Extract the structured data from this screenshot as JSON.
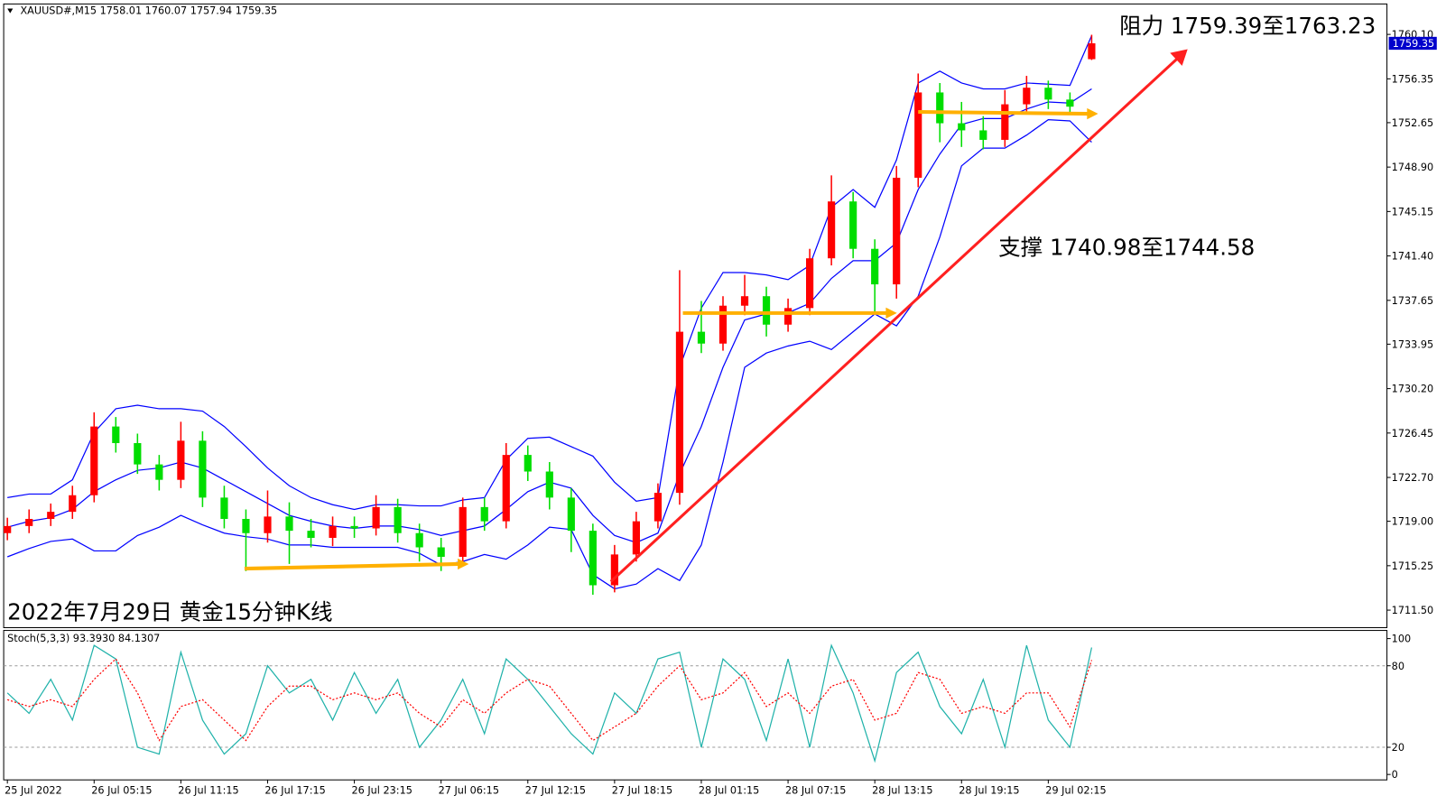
{
  "chart_data": [
    {
      "type": "candlestick",
      "title": "XAUUSD#,M15  1758.01 1760.07 1757.94 1759.35",
      "annotations": [
        "阻力 1759.39至1763.23",
        "支撑 1740.98至1744.58",
        "2022年7月29日 黄金15分钟K线"
      ],
      "categories": [
        "25 Jul 2022",
        null,
        null,
        null,
        "26 Jul 05:15",
        null,
        null,
        null,
        "26 Jul 11:15",
        null,
        null,
        null,
        "26 Jul 17:15",
        null,
        null,
        null,
        "26 Jul 23:15",
        null,
        null,
        null,
        "27 Jul 06:15",
        null,
        null,
        null,
        "27 Jul 12:15",
        null,
        null,
        null,
        "27 Jul 18:15",
        null,
        null,
        null,
        "28 Jul 01:15",
        null,
        null,
        null,
        "28 Jul 07:15",
        null,
        null,
        null,
        "28 Jul 13:15",
        null,
        null,
        null,
        "28 Jul 19:15",
        null,
        null,
        null,
        "29 Jul 02:15",
        null,
        null
      ],
      "open": [
        1718.0,
        1718.6,
        1719.2,
        1719.8,
        1721.2,
        1727.0,
        1725.6,
        1723.8,
        1722.5,
        1725.8,
        1721.0,
        1719.2,
        1718.0,
        1719.4,
        1718.2,
        1717.6,
        1718.6,
        1718.4,
        1720.2,
        1718.0,
        1716.8,
        1716.0,
        1720.2,
        1719.0,
        1724.6,
        1723.2,
        1721.0,
        1718.2,
        1713.6,
        1716.2,
        1719.0,
        1721.4,
        1735.0,
        1734.0,
        1737.2,
        1738.0,
        1735.6,
        1737.0,
        1741.2,
        1746.0,
        1742.0,
        1739.0,
        1748.0,
        1755.2,
        1752.6,
        1752.0,
        1751.2,
        1754.2,
        1755.6,
        1754.6,
        1758.01
      ],
      "high": [
        1719.3,
        1720.0,
        1720.5,
        1722.0,
        1728.2,
        1727.8,
        1726.4,
        1724.6,
        1727.4,
        1726.6,
        1722.0,
        1720.0,
        1721.6,
        1720.6,
        1719.2,
        1719.4,
        1719.4,
        1721.2,
        1720.9,
        1718.8,
        1717.6,
        1721.0,
        1721.0,
        1725.6,
        1725.4,
        1724.0,
        1721.8,
        1718.8,
        1717.0,
        1719.8,
        1722.2,
        1740.2,
        1737.6,
        1738.0,
        1739.8,
        1738.8,
        1737.8,
        1742.0,
        1748.2,
        1746.8,
        1742.8,
        1749.0,
        1756.8,
        1756.0,
        1754.4,
        1753.2,
        1755.4,
        1756.6,
        1756.2,
        1755.2,
        1760.07
      ],
      "low": [
        1717.4,
        1718.0,
        1718.6,
        1719.2,
        1720.6,
        1724.8,
        1723.0,
        1721.6,
        1721.8,
        1720.2,
        1718.4,
        1714.8,
        1717.2,
        1715.4,
        1716.8,
        1716.9,
        1717.6,
        1717.8,
        1717.2,
        1715.6,
        1714.8,
        1715.6,
        1718.2,
        1718.4,
        1722.4,
        1720.0,
        1716.4,
        1712.8,
        1713.0,
        1715.6,
        1718.4,
        1720.4,
        1733.2,
        1733.4,
        1736.4,
        1734.6,
        1735.0,
        1736.4,
        1740.6,
        1741.2,
        1736.6,
        1737.8,
        1747.2,
        1751.0,
        1750.6,
        1750.4,
        1750.6,
        1753.6,
        1753.8,
        1753.4,
        1757.94
      ],
      "close": [
        1718.6,
        1719.2,
        1719.8,
        1721.2,
        1727.0,
        1725.6,
        1723.8,
        1722.5,
        1725.8,
        1721.0,
        1719.2,
        1718.0,
        1719.4,
        1718.2,
        1717.6,
        1718.6,
        1718.4,
        1720.2,
        1718.0,
        1716.8,
        1716.0,
        1720.2,
        1719.0,
        1724.6,
        1723.2,
        1721.0,
        1718.2,
        1713.6,
        1716.2,
        1719.0,
        1721.4,
        1735.0,
        1734.0,
        1737.2,
        1738.0,
        1735.6,
        1737.0,
        1741.2,
        1746.0,
        1742.0,
        1739.0,
        1748.0,
        1755.2,
        1752.6,
        1752.0,
        1751.2,
        1754.2,
        1755.6,
        1754.6,
        1754.0,
        1759.35
      ],
      "up_color": "#ff0000",
      "down_color": "#00dd00",
      "band_color": "#0000ff",
      "upper": [
        1721.0,
        1721.3,
        1721.3,
        1722.5,
        1726.5,
        1728.5,
        1728.8,
        1728.5,
        1728.5,
        1728.3,
        1727.0,
        1725.3,
        1723.5,
        1722.0,
        1721.0,
        1720.4,
        1720.0,
        1720.4,
        1720.4,
        1720.3,
        1720.3,
        1720.8,
        1721.0,
        1724.2,
        1726.0,
        1726.1,
        1725.3,
        1724.5,
        1722.3,
        1720.7,
        1721.0,
        1732.0,
        1737.0,
        1740.0,
        1740.0,
        1739.8,
        1739.4,
        1740.6,
        1745.5,
        1747.0,
        1745.5,
        1749.5,
        1756.0,
        1757.0,
        1756.0,
        1755.5,
        1755.5,
        1756.0,
        1755.9,
        1755.8,
        1760.0
      ],
      "middle": [
        1718.5,
        1719,
        1719.3,
        1720,
        1721.5,
        1722.5,
        1723.3,
        1723.5,
        1724,
        1723.5,
        1722.5,
        1721.5,
        1720.5,
        1719.5,
        1719,
        1718.6,
        1718.4,
        1718.6,
        1718.6,
        1718.3,
        1717.8,
        1718.2,
        1718.6,
        1720,
        1721.5,
        1722.3,
        1721.8,
        1719.5,
        1717.8,
        1717.2,
        1718,
        1723,
        1727,
        1732,
        1736,
        1736.5,
        1736.6,
        1737.4,
        1739.5,
        1741,
        1741,
        1742.5,
        1747,
        1750,
        1752.5,
        1753,
        1753,
        1753.8,
        1754.4,
        1754.3,
        1755.5
      ],
      "lower": [
        1716.0,
        1716.7,
        1717.3,
        1717.5,
        1716.5,
        1716.5,
        1717.8,
        1718.5,
        1719.5,
        1718.7,
        1718.0,
        1717.7,
        1717.5,
        1717.0,
        1717.0,
        1716.8,
        1716.8,
        1716.8,
        1716.8,
        1716.3,
        1715.3,
        1715.6,
        1716.2,
        1715.8,
        1717.0,
        1718.5,
        1718.3,
        1714.5,
        1713.3,
        1713.7,
        1715.0,
        1714.0,
        1717.0,
        1724.0,
        1732.0,
        1733.2,
        1733.8,
        1734.2,
        1733.5,
        1735.0,
        1736.5,
        1735.5,
        1738.0,
        1743.0,
        1749.0,
        1750.5,
        1750.5,
        1751.6,
        1752.9,
        1752.8,
        1751.0
      ],
      "ylim": [
        1710.02,
        1762.67
      ],
      "yticks": [
        {
          "value": 1760.1,
          "label": "1760.10"
        },
        1756.35,
        1752.65,
        {
          "value": 1748.9,
          "label": "1748.90"
        },
        1745.15,
        {
          "value": 1741.4,
          "label": "1741.40"
        },
        1737.65,
        1733.95,
        {
          "value": 1730.2,
          "label": "1730.20"
        },
        1726.45,
        {
          "value": 1722.7,
          "label": "1722.70"
        },
        {
          "value": 1719.0,
          "label": "1719.00"
        },
        1715.25,
        {
          "value": 1711.5,
          "label": "1711.50"
        }
      ],
      "grid": false
    },
    {
      "type": "line",
      "title": "Stoch(5,3,3) 93.3930 84.1307",
      "series": [
        {
          "color": "#20b2aa",
          "dash": false,
          "values": [
            60,
            45,
            70,
            40,
            95,
            85,
            20,
            15,
            90,
            40,
            15,
            30,
            80,
            60,
            70,
            40,
            75,
            45,
            70,
            20,
            40,
            70,
            30,
            85,
            70,
            50,
            30,
            15,
            60,
            45,
            85,
            90,
            20,
            85,
            70,
            25,
            85,
            20,
            95,
            60,
            10,
            75,
            90,
            50,
            30,
            70,
            20,
            95,
            40,
            20,
            93.393
          ]
        },
        {
          "color": "#ff0000",
          "dash": true,
          "values": [
            55,
            50,
            55,
            50,
            70,
            85,
            60,
            25,
            50,
            55,
            40,
            25,
            50,
            65,
            65,
            55,
            60,
            55,
            60,
            45,
            35,
            55,
            45,
            60,
            70,
            65,
            45,
            25,
            35,
            45,
            65,
            80,
            55,
            60,
            75,
            50,
            60,
            45,
            65,
            70,
            40,
            45,
            75,
            70,
            45,
            50,
            45,
            60,
            60,
            35,
            84.1307
          ]
        }
      ],
      "ylim": [
        -4,
        106
      ],
      "yticks": [
        100,
        80,
        20,
        0
      ],
      "levels": [
        80,
        20
      ]
    }
  ]
}
